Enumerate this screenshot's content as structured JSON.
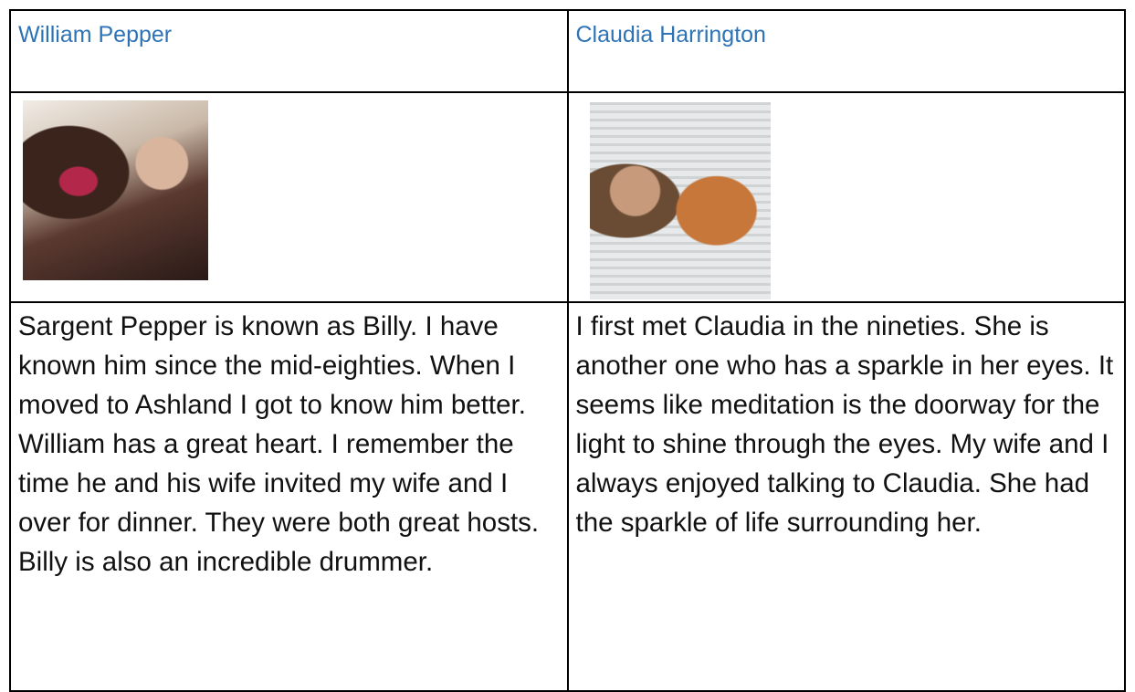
{
  "table": {
    "rows": [
      [
        "William Pepper",
        "Claudia Harrington"
      ],
      [
        "Sargent Pepper is known as Billy. I have known him since the mid-eighties. When I moved to Ashland I got to know him better. William has a great heart. I remember the time he and his wife invited my wife and I over for dinner. They were both great hosts. Billy is also an incredible drummer.",
        "I first met Claudia in the nineties. She is another one who has a sparkle in her eyes. It seems like meditation is the doorway for the light to shine through the eyes. My wife and I always enjoyed talking to Claudia. She had the sparkle of life surrounding her."
      ]
    ]
  }
}
